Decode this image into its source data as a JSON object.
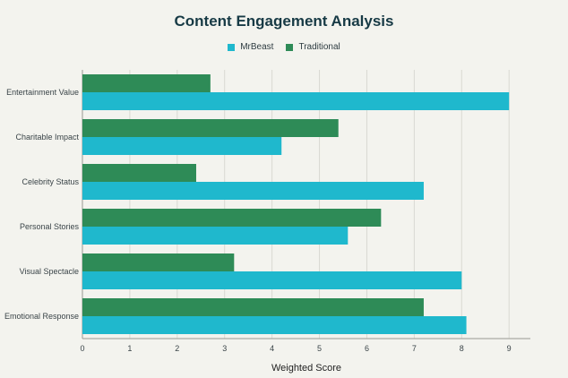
{
  "chart_data": {
    "type": "bar",
    "orientation": "horizontal",
    "title": "Content Engagement Analysis",
    "xlabel": "Weighted Score",
    "ylabel": "",
    "xlim": [
      0,
      9.45
    ],
    "xticks": [
      "0",
      "1",
      "2",
      "3",
      "4",
      "5",
      "6",
      "7",
      "8",
      "9"
    ],
    "categories": [
      "Entertainment Value",
      "Charitable Impact",
      "Celebrity Status",
      "Personal Stories",
      "Visual Spectacle",
      "Emotional Response"
    ],
    "series": [
      {
        "name": "MrBeast",
        "color": "#1fb8cd",
        "values": [
          9.0,
          4.2,
          7.2,
          5.6,
          8.0,
          8.1
        ]
      },
      {
        "name": "Traditional",
        "color": "#2e8b57",
        "values": [
          2.7,
          5.4,
          2.4,
          6.3,
          3.2,
          7.2
        ]
      }
    ],
    "legend_position": "top-center",
    "grid": true
  }
}
